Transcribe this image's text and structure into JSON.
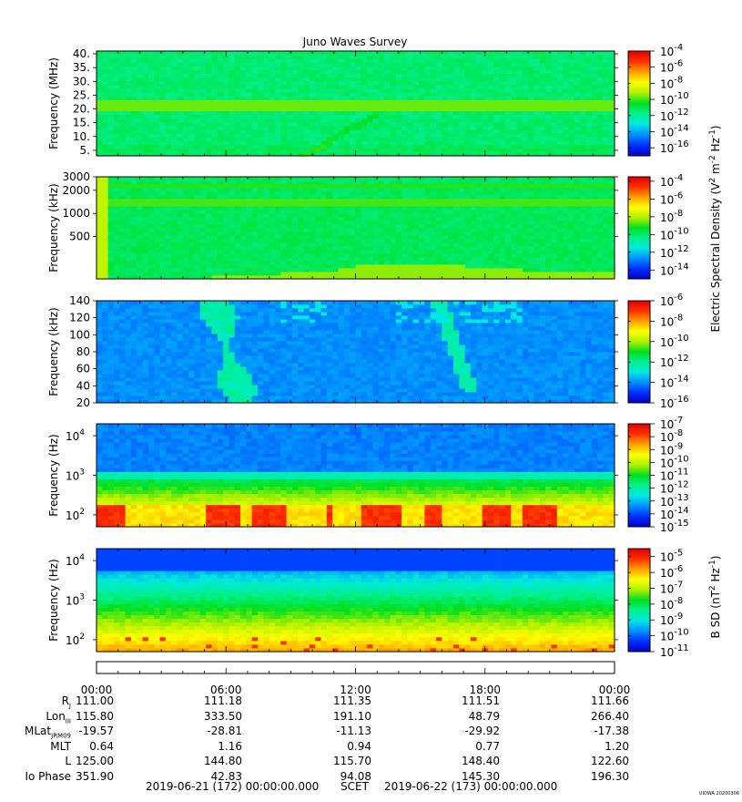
{
  "title": "Juno Waves Survey",
  "stamp": "UIOWA 20200306",
  "colors": {
    "cmap": [
      "#0000c8",
      "#0030ff",
      "#0090ff",
      "#00e8e0",
      "#00f090",
      "#00e020",
      "#b0f000",
      "#ffff00",
      "#ffa000",
      "#ff3000",
      "#e00000"
    ]
  },
  "chart_data": [
    {
      "type": "heatmap",
      "panel": "p1",
      "ylabel": "Frequency (MHz)",
      "yscale": "linear",
      "ylim": [
        3,
        41
      ],
      "yticks": [
        {
          "v": 5,
          "label": "5."
        },
        {
          "v": 10,
          "label": "10."
        },
        {
          "v": 15,
          "label": "15."
        },
        {
          "v": 20,
          "label": "20."
        },
        {
          "v": 25,
          "label": "25."
        },
        {
          "v": 30,
          "label": "30."
        },
        {
          "v": 35,
          "label": "35."
        },
        {
          "v": 40,
          "label": "40."
        }
      ],
      "background_level": 0.43,
      "features": [
        "strong band near 21 MHz",
        "faint emission arcs near 08:30-12:00, 5-25 MHz"
      ],
      "colorbar": {
        "ticks": [
          {
            "b": "10",
            "e": "-4"
          },
          {
            "b": "10",
            "e": "-6"
          },
          {
            "b": "10",
            "e": "-8"
          },
          {
            "b": "10",
            "e": "-10"
          },
          {
            "b": "10",
            "e": "-12"
          },
          {
            "b": "10",
            "e": "-14"
          },
          {
            "b": "10",
            "e": "-16"
          }
        ],
        "min_exp": -17,
        "max_exp": -4
      }
    },
    {
      "type": "heatmap",
      "panel": "p2",
      "ylabel": "Frequency (kHz)",
      "yscale": "log",
      "ylim": [
        140,
        3000
      ],
      "yticks": [
        {
          "v": 500,
          "label": "500"
        },
        {
          "v": 1000,
          "label": "1000"
        },
        {
          "v": 2000,
          "label": "2000"
        },
        {
          "v": 3000,
          "label": "3000"
        }
      ],
      "background_level": 0.45,
      "features": [
        "band near 1600 kHz",
        "low-frequency enhancement after 08:00"
      ],
      "colorbar": {
        "ticks": [
          {
            "b": "10",
            "e": "-4"
          },
          {
            "b": "10",
            "e": "-6"
          },
          {
            "b": "10",
            "e": "-8"
          },
          {
            "b": "10",
            "e": "-10"
          },
          {
            "b": "10",
            "e": "-12"
          },
          {
            "b": "10",
            "e": "-14"
          }
        ],
        "min_exp": -15,
        "max_exp": -3.5
      }
    },
    {
      "type": "heatmap",
      "panel": "p3",
      "ylabel": "Frequency (kHz)",
      "yscale": "linear",
      "ylim": [
        20,
        140
      ],
      "yticks": [
        {
          "v": 20,
          "label": "20"
        },
        {
          "v": 40,
          "label": "40"
        },
        {
          "v": 60,
          "label": "60"
        },
        {
          "v": 80,
          "label": "80"
        },
        {
          "v": 100,
          "label": "100"
        },
        {
          "v": 120,
          "label": "120"
        },
        {
          "v": 140,
          "label": "140"
        }
      ],
      "background_level": 0.2,
      "features": [
        "bursts near 05:00-08:00",
        "bursts near 14:00-19:00"
      ],
      "colorbar": {
        "ticks": [
          {
            "b": "10",
            "e": "-6"
          },
          {
            "b": "10",
            "e": "-8"
          },
          {
            "b": "10",
            "e": "-10"
          },
          {
            "b": "10",
            "e": "-12"
          },
          {
            "b": "10",
            "e": "-14"
          },
          {
            "b": "10",
            "e": "-16"
          }
        ],
        "min_exp": -16,
        "max_exp": -6
      }
    },
    {
      "type": "heatmap",
      "panel": "p4",
      "ylabel": "Frequency (Hz)",
      "yscale": "log",
      "ylim": [
        50,
        20000
      ],
      "yticks": [
        {
          "v": 100,
          "b": "10",
          "e": "2"
        },
        {
          "v": 1000,
          "b": "10",
          "e": "3"
        },
        {
          "v": 10000,
          "b": "10",
          "e": "4"
        }
      ],
      "background_level": 0.2,
      "features": [
        "intense emission below 300 Hz",
        "green/yellow band 300-1500 Hz"
      ],
      "colorbar": {
        "ticks": [
          {
            "b": "10",
            "e": "-7"
          },
          {
            "b": "10",
            "e": "-8"
          },
          {
            "b": "10",
            "e": "-9"
          },
          {
            "b": "10",
            "e": "-10"
          },
          {
            "b": "10",
            "e": "-11"
          },
          {
            "b": "10",
            "e": "-12"
          },
          {
            "b": "10",
            "e": "-13"
          },
          {
            "b": "10",
            "e": "-14"
          },
          {
            "b": "10",
            "e": "-15"
          }
        ],
        "min_exp": -15,
        "max_exp": -7
      }
    },
    {
      "type": "heatmap",
      "panel": "p5",
      "ylabel": "Frequency (Hz)",
      "yscale": "log",
      "ylim": [
        50,
        20000
      ],
      "yticks": [
        {
          "v": 100,
          "b": "10",
          "e": "2"
        },
        {
          "v": 1000,
          "b": "10",
          "e": "3"
        },
        {
          "v": 10000,
          "b": "10",
          "e": "4"
        }
      ],
      "background_level": 0.5,
      "features": [
        "magnetic spectral density gradient blue to yellow with decreasing frequency"
      ],
      "colorbar": {
        "ticks": [
          {
            "b": "10",
            "e": "-5"
          },
          {
            "b": "10",
            "e": "-6"
          },
          {
            "b": "10",
            "e": "-7"
          },
          {
            "b": "10",
            "e": "-8"
          },
          {
            "b": "10",
            "e": "-9"
          },
          {
            "b": "10",
            "e": "-10"
          },
          {
            "b": "10",
            "e": "-11"
          }
        ],
        "min_exp": -11,
        "max_exp": -4.5
      }
    }
  ],
  "colorbar_labels": {
    "e_field": {
      "pre": "Electric Spectral Density (V",
      "mid": " m",
      "mid2": " Hz",
      "post": ")",
      "e1": "2",
      "e2": "-2",
      "e3": "-1"
    },
    "b_field": {
      "pre": "B SD (nT",
      "mid": " Hz",
      "post": ")",
      "e1": "2",
      "e2": "-1"
    }
  },
  "time_axis": {
    "labels": [
      "00:00",
      "06:00",
      "12:00",
      "18:00",
      "00:00"
    ]
  },
  "ephemeris": {
    "labels": [
      {
        "text": "R",
        "sub": "J"
      },
      {
        "text": "Lon",
        "sub": "III"
      },
      {
        "text": "MLat",
        "sub": "JRM09"
      },
      {
        "text": "MLT",
        "sub": ""
      },
      {
        "text": "L",
        "sub": ""
      },
      {
        "text": "Io Phase",
        "sub": ""
      }
    ],
    "rows": [
      [
        "111.00",
        "111.18",
        "111.35",
        "111.51",
        "111.66"
      ],
      [
        "115.80",
        "333.50",
        "191.10",
        "48.79",
        "266.40"
      ],
      [
        "-19.57",
        "-28.81",
        "-11.13",
        "-29.92",
        "-17.38"
      ],
      [
        "0.64",
        "1.16",
        "0.94",
        "0.77",
        "1.20"
      ],
      [
        "125.00",
        "144.80",
        "115.70",
        "148.40",
        "122.60"
      ],
      [
        "351.90",
        "42.83",
        "94.08",
        "145.30",
        "196.30"
      ]
    ]
  },
  "footer": {
    "start": "2019-06-21 (172) 00:00:00.000",
    "scet": "SCET",
    "end": "2019-06-22 (173) 00:00:00.000"
  }
}
